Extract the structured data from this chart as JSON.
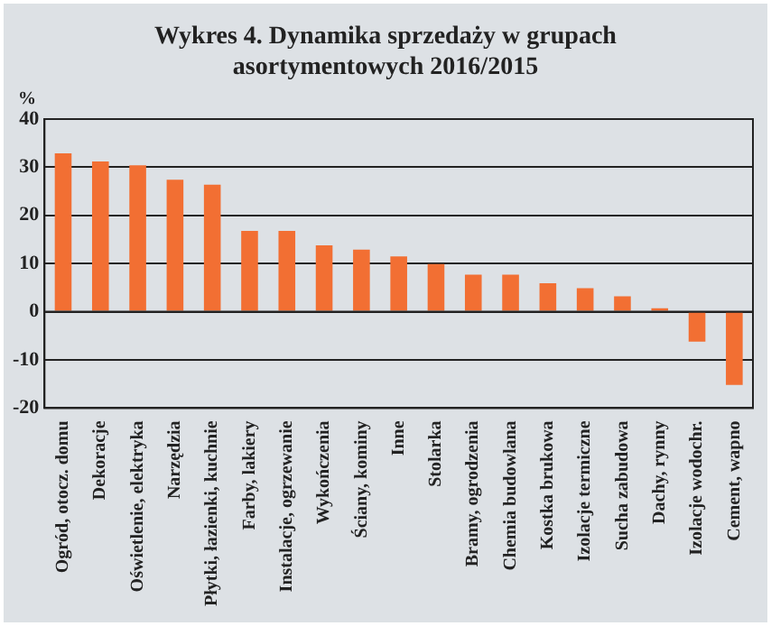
{
  "chart_data": {
    "type": "bar",
    "title": "Wykres 4. Dynamika sprzedaży w grupach asortymentowych 2016/2015",
    "ylabel": "%",
    "categories": [
      "Ogród, otocz. domu",
      "Dekoracje",
      "Oświetlenie, elektryka",
      "Narzędzia",
      "Płytki, łazienki, kuchnie",
      "Farby, lakiery",
      "Instalacje, ogrzewanie",
      "Wykończenia",
      "Ściany, kominy",
      "Inne",
      "Stolarka",
      "Bramy, ogrodzenia",
      "Chemia budowlana",
      "Kostka brukowa",
      "Izolacje termiczne",
      "Sucha zabudowa",
      "Dachy, rynny",
      "Izolacje wodochr.",
      "Cement, wapno"
    ],
    "values": [
      32.9,
      31.2,
      30.4,
      27.4,
      26.4,
      16.8,
      16.8,
      13.8,
      12.9,
      11.5,
      9.9,
      7.7,
      7.7,
      5.9,
      4.9,
      3.2,
      0.7,
      -6.2,
      -15.2
    ],
    "color": "#f26f33",
    "ylim": [
      -20,
      40
    ],
    "yticks": [
      -20,
      -10,
      0,
      10,
      20,
      30,
      40
    ],
    "grid": "y",
    "legend": false
  }
}
